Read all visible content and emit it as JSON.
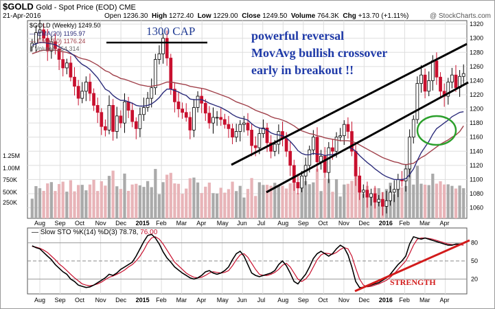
{
  "header": {
    "symbol": "$GOLD",
    "subtitle": "Gold - Spot Price (EOD)  CME",
    "date": "21-Apr-2016",
    "open_label": "Open",
    "open": "1236.30",
    "high_label": "High",
    "high": "1272.40",
    "low_label": "Low",
    "low": "1229.00",
    "close_label": "Close",
    "close": "1249.50",
    "volume_label": "Volume",
    "volume": "764.3K",
    "chg_label": "Chg",
    "chg": "+13.70 (+1.11%)",
    "watermark": "@ StockCharts.com"
  },
  "legend": {
    "price": "$GOLD (Weekly) 1249.50",
    "ema20": "EMA(20) 1195.97",
    "ema50": "EMA(50) 1176.24",
    "volume": "Volume 764,314"
  },
  "annotations": {
    "cap": "1300 CAP",
    "line1": "powerful reversal",
    "line2": "MovAvg bullish crossover",
    "line3": "early in breakout !!",
    "strength": "STRENGTH"
  },
  "sto_legend": {
    "label": "Slow STO %K(14) %D(3)",
    "k": "78.78",
    "d": "76.00"
  },
  "colors": {
    "up": "#000000",
    "down": "#c8102e",
    "ema20": "#2b2b7a",
    "ema50": "#a0404a",
    "volume_up": "#aaaaaa",
    "volume_down": "#e8b4b8",
    "annotation_blue": "#1f3aa8",
    "annotation_red": "#d21b1b",
    "circle_green": "#2ca02c",
    "grid": "#dddddd"
  },
  "chart_data": [
    {
      "type": "candlestick",
      "x_tick_labels": [
        "Aug",
        "Sep",
        "Oct",
        "Nov",
        "Dec",
        "2015",
        "Feb",
        "Mar",
        "Apr",
        "May",
        "Jun",
        "Jul",
        "Aug",
        "Sep",
        "Oct",
        "Nov",
        "Dec",
        "2016",
        "Feb",
        "Mar",
        "Apr"
      ],
      "y_ticks": [
        1060,
        1080,
        1100,
        1120,
        1140,
        1160,
        1180,
        1200,
        1220,
        1240,
        1260,
        1280,
        1300,
        1320
      ],
      "ylim": [
        1045,
        1325
      ],
      "close": [
        1293,
        1308,
        1312,
        1300,
        1282,
        1295,
        1285,
        1270,
        1258,
        1265,
        1245,
        1232,
        1215,
        1225,
        1238,
        1222,
        1205,
        1195,
        1175,
        1170,
        1205,
        1168,
        1190,
        1180,
        1210,
        1198,
        1182,
        1172,
        1192,
        1202,
        1215,
        1230,
        1270,
        1278,
        1300,
        1272,
        1228,
        1210,
        1200,
        1195,
        1188,
        1170,
        1202,
        1218,
        1208,
        1194,
        1180,
        1188,
        1188,
        1185,
        1178,
        1172,
        1160,
        1168,
        1178,
        1180,
        1170,
        1148,
        1145,
        1165,
        1173,
        1152,
        1140,
        1150,
        1168,
        1158,
        1140,
        1120,
        1096,
        1088,
        1105,
        1120,
        1142,
        1160,
        1125,
        1133,
        1110,
        1145,
        1140,
        1160,
        1162,
        1178,
        1168,
        1140,
        1105,
        1082,
        1085,
        1075,
        1080,
        1068,
        1072,
        1062,
        1070,
        1082,
        1086,
        1100,
        1098,
        1115,
        1160,
        1185,
        1236,
        1248,
        1225,
        1240,
        1268,
        1245,
        1225,
        1218,
        1238,
        1248,
        1230,
        1246,
        1250
      ],
      "ema20": [
        1290,
        1292,
        1294,
        1294,
        1293,
        1292,
        1291,
        1288,
        1285,
        1283,
        1279,
        1275,
        1268,
        1263,
        1260,
        1256,
        1250,
        1244,
        1236,
        1228,
        1225,
        1219,
        1215,
        1212,
        1212,
        1210,
        1208,
        1205,
        1204,
        1204,
        1205,
        1207,
        1211,
        1216,
        1223,
        1228,
        1228,
        1226,
        1224,
        1221,
        1219,
        1214,
        1213,
        1213,
        1213,
        1211,
        1208,
        1206,
        1204,
        1202,
        1199,
        1196,
        1192,
        1189,
        1187,
        1186,
        1184,
        1179,
        1175,
        1173,
        1172,
        1170,
        1166,
        1164,
        1163,
        1162,
        1159,
        1154,
        1148,
        1141,
        1137,
        1135,
        1135,
        1137,
        1136,
        1136,
        1134,
        1135,
        1135,
        1137,
        1139,
        1142,
        1145,
        1144,
        1140,
        1134,
        1129,
        1124,
        1120,
        1115,
        1111,
        1107,
        1104,
        1102,
        1100,
        1100,
        1100,
        1101,
        1107,
        1115,
        1127,
        1138,
        1146,
        1154,
        1164,
        1172,
        1176,
        1180,
        1184,
        1189,
        1192,
        1195,
        1196
      ],
      "ema50": [
        1278,
        1280,
        1282,
        1283,
        1283,
        1283,
        1283,
        1282,
        1281,
        1280,
        1278,
        1276,
        1273,
        1271,
        1270,
        1268,
        1265,
        1262,
        1258,
        1254,
        1252,
        1248,
        1246,
        1243,
        1242,
        1240,
        1238,
        1236,
        1234,
        1233,
        1232,
        1232,
        1233,
        1234,
        1236,
        1238,
        1238,
        1237,
        1236,
        1235,
        1234,
        1232,
        1231,
        1230,
        1229,
        1228,
        1226,
        1224,
        1222,
        1220,
        1218,
        1216,
        1213,
        1210,
        1208,
        1206,
        1204,
        1201,
        1198,
        1196,
        1194,
        1192,
        1189,
        1187,
        1186,
        1184,
        1182,
        1179,
        1176,
        1172,
        1169,
        1167,
        1165,
        1164,
        1162,
        1161,
        1159,
        1158,
        1157,
        1156,
        1155,
        1155,
        1155,
        1154,
        1152,
        1149,
        1146,
        1143,
        1140,
        1137,
        1134,
        1131,
        1129,
        1127,
        1125,
        1124,
        1122,
        1121,
        1122,
        1123,
        1127,
        1131,
        1134,
        1138,
        1142,
        1146,
        1150,
        1153,
        1156,
        1160,
        1163,
        1168,
        1176
      ]
    },
    {
      "type": "bar",
      "name": "Volume",
      "y_tick_labels": [
        "1.25M",
        "1.00M",
        "750K",
        "500K",
        "250K"
      ],
      "y_ticks": [
        1250000,
        1000000,
        750000,
        500000,
        250000
      ]
    },
    {
      "type": "line",
      "title": "Slow STO %K(14) %D(3)",
      "y_ticks": [
        20,
        50,
        80
      ],
      "ylim": [
        0,
        100
      ],
      "k": [
        75,
        72,
        70,
        64,
        58,
        52,
        44,
        38,
        32,
        28,
        20,
        16,
        10,
        8,
        6,
        7,
        10,
        14,
        18,
        22,
        28,
        26,
        30,
        36,
        40,
        44,
        48,
        58,
        70,
        82,
        92,
        94,
        88,
        78,
        65,
        55,
        48,
        40,
        35,
        30,
        26,
        22,
        20,
        22,
        26,
        32,
        34,
        30,
        28,
        30,
        34,
        40,
        52,
        62,
        66,
        58,
        44,
        30,
        26,
        24,
        26,
        28,
        30,
        34,
        44,
        50,
        42,
        30,
        16,
        12,
        20,
        28,
        40,
        54,
        62,
        66,
        62,
        58,
        62,
        70,
        76,
        72,
        60,
        40,
        16,
        6,
        6,
        8,
        10,
        12,
        14,
        18,
        22,
        28,
        36,
        44,
        50,
        58,
        78,
        90,
        88,
        86,
        88,
        86,
        84,
        82,
        80,
        78,
        76,
        76,
        78,
        78,
        79
      ],
      "d": [
        74,
        73,
        71,
        68,
        64,
        58,
        52,
        45,
        40,
        34,
        28,
        22,
        17,
        12,
        10,
        9,
        10,
        12,
        15,
        19,
        23,
        25,
        28,
        31,
        35,
        40,
        44,
        50,
        58,
        68,
        80,
        88,
        90,
        86,
        78,
        68,
        58,
        48,
        42,
        36,
        30,
        26,
        23,
        22,
        23,
        26,
        30,
        32,
        31,
        30,
        31,
        34,
        42,
        52,
        60,
        62,
        56,
        46,
        36,
        28,
        26,
        26,
        28,
        31,
        36,
        43,
        46,
        40,
        30,
        20,
        16,
        20,
        28,
        40,
        52,
        60,
        63,
        62,
        61,
        64,
        69,
        72,
        70,
        58,
        38,
        20,
        10,
        7,
        8,
        10,
        12,
        15,
        18,
        23,
        29,
        36,
        43,
        50,
        62,
        76,
        86,
        88,
        88,
        87,
        86,
        84,
        82,
        80,
        78,
        77,
        77,
        77,
        76
      ]
    }
  ]
}
